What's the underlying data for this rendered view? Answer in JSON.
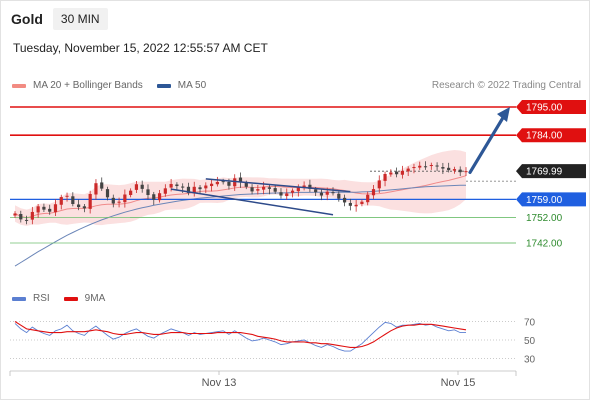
{
  "header": {
    "title": "Gold",
    "timeframe": "30 MIN"
  },
  "datetime": "Tuesday, November 15, 2022 12:55:57 AM CET",
  "legend": {
    "items": [
      {
        "label": "MA 20 + Bollinger Bands",
        "color": "#f28b82"
      },
      {
        "label": "MA 50",
        "color": "#2d5796"
      }
    ],
    "credit": "Research © 2022 Trading Central"
  },
  "rsi_legend": {
    "items": [
      {
        "label": "RSI",
        "color": "#5b7fd1"
      },
      {
        "label": "9MA",
        "color": "#e01010"
      }
    ]
  },
  "chart_data": [
    {
      "type": "candlestick",
      "instrument": "Gold",
      "timeframe": "30 MIN",
      "ylim": [
        1728,
        1800
      ],
      "x_ticks": [
        "Nov 13",
        "Nov 15"
      ],
      "price_levels": [
        {
          "label": "1795.00",
          "value": 1795.0,
          "color": "#e01010",
          "style": "resistance"
        },
        {
          "label": "1784.00",
          "value": 1784.0,
          "color": "#e01010",
          "style": "resistance"
        },
        {
          "label": "1769.99",
          "value": 1769.99,
          "color": "#222222",
          "style": "last-price"
        },
        {
          "label": "1759.00",
          "value": 1759.0,
          "color": "#1f5fe0",
          "style": "pivot"
        },
        {
          "label": "1752.00",
          "value": 1752.0,
          "color": "#2e8b2e",
          "style": "support"
        },
        {
          "label": "1742.00",
          "value": 1742.0,
          "color": "#2e8b2e",
          "style": "support"
        }
      ],
      "closes": [
        1753.5,
        1751.2,
        1750.8,
        1754.1,
        1756.3,
        1755.0,
        1754.2,
        1757.1,
        1759.9,
        1760.4,
        1757.2,
        1756.0,
        1755.5,
        1761.1,
        1765.3,
        1763.2,
        1759.8,
        1757.4,
        1758.1,
        1760.9,
        1762.4,
        1764.9,
        1763.1,
        1760.7,
        1758.9,
        1761.4,
        1763.3,
        1765.0,
        1764.2,
        1763.6,
        1761.5,
        1763.9,
        1763.0,
        1764.4,
        1765.1,
        1765.8,
        1766.0,
        1764.3,
        1767.2,
        1765.6,
        1763.9,
        1762.1,
        1763.0,
        1763.9,
        1763.1,
        1762.0,
        1760.5,
        1761.3,
        1762.4,
        1763.6,
        1764.4,
        1763.1,
        1761.8,
        1760.5,
        1762.0,
        1761.4,
        1759.3,
        1757.8,
        1756.5,
        1756.9,
        1758.1,
        1760.8,
        1763.0,
        1766.4,
        1768.9,
        1769.5,
        1768.8,
        1770.1,
        1771.0,
        1771.6,
        1772.1,
        1771.7,
        1772.4,
        1771.8,
        1771.0,
        1770.4,
        1770.8,
        1769.6,
        1769.99
      ],
      "ma50": [
        1733.0,
        1734.4,
        1735.8,
        1737.2,
        1738.6,
        1739.9,
        1741.2,
        1742.5,
        1743.8,
        1745.0,
        1746.1,
        1747.2,
        1748.2,
        1749.2,
        1750.1,
        1751.0,
        1751.8,
        1752.6,
        1753.3,
        1754.0,
        1754.6,
        1755.2,
        1755.7,
        1756.2,
        1756.7,
        1757.1,
        1757.5,
        1757.9,
        1758.3,
        1758.6,
        1758.9,
        1759.2,
        1759.5,
        1759.7,
        1759.9,
        1760.1,
        1760.3,
        1760.5,
        1760.7,
        1760.9,
        1761.0,
        1761.1,
        1761.2,
        1761.3,
        1761.4,
        1761.5,
        1761.5,
        1761.6,
        1761.6,
        1761.7,
        1761.7,
        1761.7,
        1761.8,
        1761.8,
        1761.8,
        1761.8,
        1761.8,
        1761.8,
        1761.8,
        1761.8,
        1761.9,
        1762.0,
        1762.1,
        1762.3,
        1762.5,
        1762.7,
        1762.9,
        1763.1,
        1763.3,
        1763.5,
        1763.7,
        1763.9,
        1764.0,
        1764.1,
        1764.2,
        1764.3,
        1764.4,
        1764.5,
        1764.5
      ],
      "channel_lines": [
        {
          "from": [
            33,
            1767.0
          ],
          "to": [
            58,
            1762.0
          ],
          "color": "#2d4a8a"
        },
        {
          "from": [
            27,
            1763.0
          ],
          "to": [
            55,
            1753.0
          ],
          "color": "#2d4a8a"
        }
      ],
      "projection_arrow": {
        "from": [
          78,
          1769.5
        ],
        "to": [
          82,
          1795.0
        ],
        "color": "#2d5796"
      }
    },
    {
      "type": "line",
      "panel": "RSI",
      "ylim": [
        20,
        80
      ],
      "y_ticks": [
        70,
        50,
        30
      ],
      "series": [
        {
          "name": "RSI",
          "values": [
            68,
            62,
            58,
            64,
            60,
            57,
            55,
            60,
            62,
            66,
            60,
            57,
            55,
            61,
            65,
            60,
            55,
            51,
            53,
            57,
            60,
            62,
            58,
            54,
            52,
            56,
            59,
            62,
            60,
            58,
            55,
            58,
            56,
            57,
            58,
            59,
            60,
            56,
            60,
            56,
            52,
            49,
            50,
            52,
            50,
            48,
            45,
            46,
            48,
            49,
            50,
            47,
            44,
            42,
            45,
            43,
            40,
            38,
            38,
            42,
            46,
            52,
            58,
            64,
            69,
            68,
            64,
            66,
            66,
            67,
            68,
            66,
            67,
            64,
            62,
            60,
            61,
            58,
            58
          ]
        },
        {
          "name": "9MA",
          "values": [
            70,
            66,
            62,
            61,
            60,
            59,
            58,
            58,
            58,
            59,
            59,
            59,
            59,
            60,
            61,
            60,
            59,
            57,
            56,
            56,
            57,
            58,
            58,
            57,
            56,
            56,
            57,
            58,
            58,
            58,
            57,
            57,
            57,
            57,
            57,
            58,
            58,
            58,
            58,
            58,
            57,
            56,
            54,
            53,
            52,
            51,
            49,
            48,
            48,
            48,
            48,
            47,
            47,
            46,
            46,
            45,
            44,
            43,
            42,
            42,
            43,
            45,
            48,
            52,
            56,
            60,
            63,
            65,
            66,
            66,
            67,
            67,
            67,
            66,
            65,
            64,
            63,
            62,
            61
          ]
        }
      ]
    }
  ]
}
